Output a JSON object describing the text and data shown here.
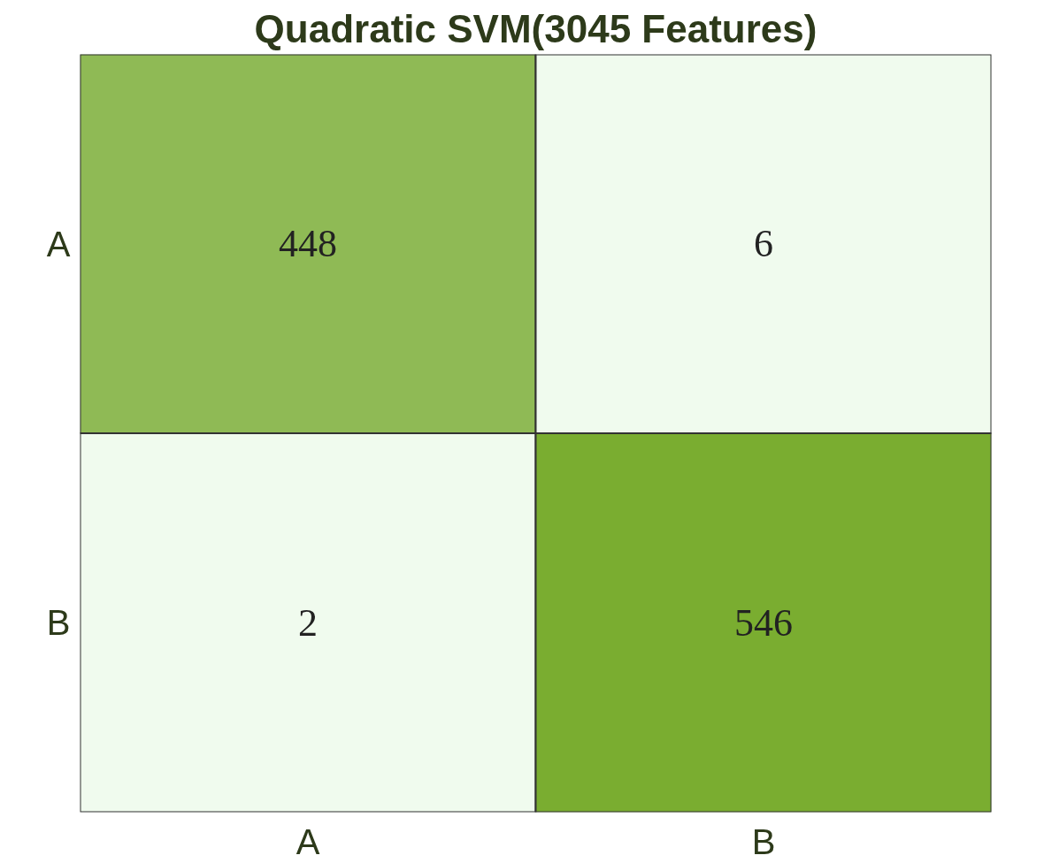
{
  "chart_data": {
    "type": "heatmap",
    "title": "Quadratic SVM(3045 Features)",
    "categories": [
      "A",
      "B"
    ],
    "y_categories": [
      "A",
      "B"
    ],
    "cells": [
      [
        448,
        6
      ],
      [
        2,
        546
      ]
    ],
    "colors": [
      [
        "#8fba55",
        "#f0fbee"
      ],
      [
        "#f0fbee",
        "#7aad30"
      ]
    ],
    "data_labels": true
  }
}
